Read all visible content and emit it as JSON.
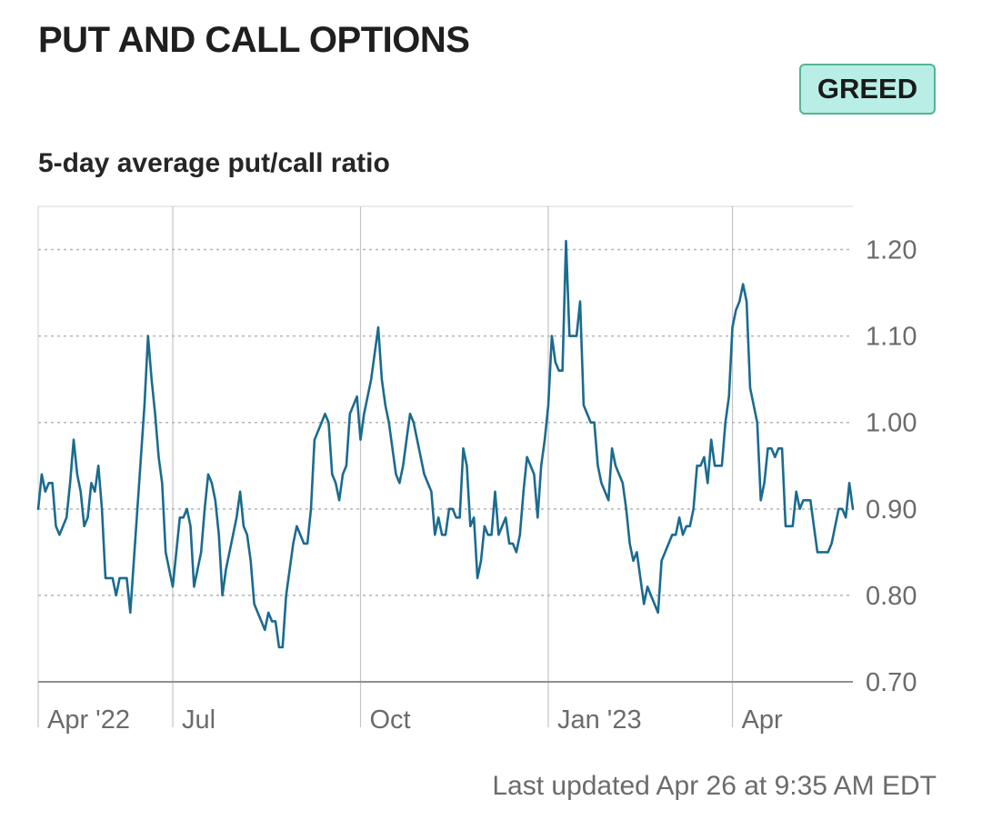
{
  "header": {
    "title": "PUT AND CALL OPTIONS",
    "badge": "GREED",
    "subtitle": "5-day average put/call ratio"
  },
  "footer": {
    "updated": "Last updated Apr 26 at 9:35 AM EDT"
  },
  "colors": {
    "line": "#1b6b8f",
    "badge_bg": "#b8eee6",
    "badge_border": "#54b592",
    "grid": "#b5b5b5",
    "axis_text": "#6b6b6b"
  },
  "chart_data": {
    "type": "line",
    "x_ticks": [
      "Apr '22",
      "Jul",
      "Oct",
      "Jan '23",
      "Apr"
    ],
    "x_tick_index": [
      0,
      38,
      91,
      144,
      196
    ],
    "y_ticks": [
      0.7,
      0.8,
      0.9,
      1.0,
      1.1,
      1.2
    ],
    "y_tick_labels": [
      "0.70",
      "0.80",
      "0.90",
      "1.00",
      "1.10",
      "1.20"
    ],
    "ylim": [
      0.7,
      1.25
    ],
    "grid": "dotted horizontal",
    "series": [
      {
        "values": [
          0.9,
          0.94,
          0.92,
          0.93,
          0.93,
          0.88,
          0.87,
          0.88,
          0.89,
          0.93,
          0.98,
          0.94,
          0.92,
          0.88,
          0.89,
          0.93,
          0.92,
          0.95,
          0.9,
          0.82,
          0.82,
          0.82,
          0.8,
          0.82,
          0.82,
          0.82,
          0.78,
          0.84,
          0.9,
          0.96,
          1.02,
          1.1,
          1.05,
          1.01,
          0.96,
          0.93,
          0.85,
          0.83,
          0.81,
          0.85,
          0.89,
          0.89,
          0.9,
          0.88,
          0.81,
          0.83,
          0.85,
          0.9,
          0.94,
          0.93,
          0.91,
          0.87,
          0.8,
          0.83,
          0.85,
          0.87,
          0.89,
          0.92,
          0.88,
          0.87,
          0.84,
          0.79,
          0.78,
          0.77,
          0.76,
          0.78,
          0.77,
          0.77,
          0.74,
          0.74,
          0.8,
          0.83,
          0.86,
          0.88,
          0.87,
          0.86,
          0.86,
          0.9,
          0.98,
          0.99,
          1.0,
          1.01,
          1.0,
          0.94,
          0.93,
          0.91,
          0.94,
          0.95,
          1.01,
          1.02,
          1.03,
          0.98,
          1.01,
          1.03,
          1.05,
          1.08,
          1.11,
          1.05,
          1.02,
          1.0,
          0.97,
          0.94,
          0.93,
          0.95,
          0.98,
          1.01,
          1.0,
          0.98,
          0.96,
          0.94,
          0.93,
          0.92,
          0.87,
          0.89,
          0.87,
          0.87,
          0.9,
          0.9,
          0.89,
          0.89,
          0.97,
          0.95,
          0.88,
          0.89,
          0.82,
          0.84,
          0.88,
          0.87,
          0.87,
          0.92,
          0.87,
          0.88,
          0.89,
          0.86,
          0.86,
          0.85,
          0.87,
          0.92,
          0.96,
          0.95,
          0.94,
          0.89,
          0.95,
          0.98,
          1.02,
          1.1,
          1.07,
          1.06,
          1.06,
          1.21,
          1.1,
          1.1,
          1.1,
          1.14,
          1.02,
          1.01,
          1.0,
          1.0,
          0.95,
          0.93,
          0.92,
          0.91,
          0.97,
          0.95,
          0.94,
          0.93,
          0.9,
          0.86,
          0.84,
          0.85,
          0.82,
          0.79,
          0.81,
          0.8,
          0.79,
          0.78,
          0.84,
          0.85,
          0.86,
          0.87,
          0.87,
          0.89,
          0.87,
          0.88,
          0.88,
          0.9,
          0.95,
          0.95,
          0.96,
          0.93,
          0.98,
          0.95,
          0.95,
          0.95,
          1.0,
          1.03,
          1.11,
          1.13,
          1.14,
          1.16,
          1.14,
          1.04,
          1.02,
          1.0,
          0.91,
          0.93,
          0.97,
          0.97,
          0.96,
          0.97,
          0.97,
          0.88,
          0.88,
          0.88,
          0.92,
          0.9,
          0.91,
          0.91,
          0.91,
          0.88,
          0.85,
          0.85,
          0.85,
          0.85,
          0.86,
          0.88,
          0.9,
          0.9,
          0.89,
          0.93,
          0.9
        ]
      }
    ]
  }
}
